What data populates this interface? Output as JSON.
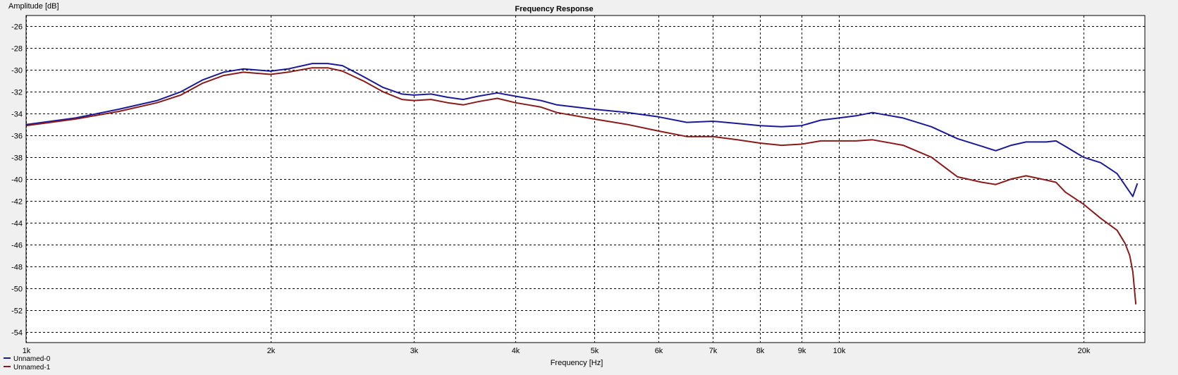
{
  "chart_data": {
    "type": "line",
    "title": "Frequency Response",
    "xlabel": "Frequency [Hz]",
    "ylabel": "Amplitude [dB]",
    "x_scale": "log",
    "xlim": [
      1000,
      23800
    ],
    "ylim": [
      -55,
      -25
    ],
    "grid": true,
    "legend_position": "bottom-left",
    "x_ticks": [
      {
        "value": 1000,
        "label": "1k"
      },
      {
        "value": 2000,
        "label": "2k"
      },
      {
        "value": 3000,
        "label": "3k"
      },
      {
        "value": 4000,
        "label": "4k"
      },
      {
        "value": 5000,
        "label": "5k"
      },
      {
        "value": 6000,
        "label": "6k"
      },
      {
        "value": 7000,
        "label": "7k"
      },
      {
        "value": 8000,
        "label": "8k"
      },
      {
        "value": 9000,
        "label": "9k"
      },
      {
        "value": 10000,
        "label": "10k"
      },
      {
        "value": 20000,
        "label": "20k"
      }
    ],
    "y_ticks": [
      -26,
      -28,
      -30,
      -32,
      -34,
      -36,
      -38,
      -40,
      -42,
      -44,
      -46,
      -48,
      -50,
      -52,
      -54
    ],
    "series": [
      {
        "name": "Unnamed-0",
        "color": "#1a1a99",
        "points": [
          [
            1000,
            -35.0
          ],
          [
            1150,
            -34.4
          ],
          [
            1300,
            -33.6
          ],
          [
            1450,
            -32.8
          ],
          [
            1550,
            -32.0
          ],
          [
            1650,
            -30.9
          ],
          [
            1750,
            -30.2
          ],
          [
            1850,
            -29.9
          ],
          [
            2000,
            -30.1
          ],
          [
            2100,
            -29.9
          ],
          [
            2250,
            -29.4
          ],
          [
            2350,
            -29.4
          ],
          [
            2450,
            -29.6
          ],
          [
            2600,
            -30.6
          ],
          [
            2750,
            -31.6
          ],
          [
            2900,
            -32.2
          ],
          [
            3000,
            -32.3
          ],
          [
            3150,
            -32.2
          ],
          [
            3300,
            -32.5
          ],
          [
            3450,
            -32.7
          ],
          [
            3600,
            -32.4
          ],
          [
            3800,
            -32.1
          ],
          [
            4000,
            -32.4
          ],
          [
            4300,
            -32.8
          ],
          [
            4500,
            -33.2
          ],
          [
            5000,
            -33.6
          ],
          [
            5500,
            -33.9
          ],
          [
            6000,
            -34.3
          ],
          [
            6500,
            -34.8
          ],
          [
            7000,
            -34.7
          ],
          [
            7500,
            -34.9
          ],
          [
            8000,
            -35.1
          ],
          [
            8500,
            -35.2
          ],
          [
            9000,
            -35.1
          ],
          [
            9500,
            -34.6
          ],
          [
            10000,
            -34.4
          ],
          [
            10500,
            -34.2
          ],
          [
            11000,
            -33.9
          ],
          [
            12000,
            -34.4
          ],
          [
            13000,
            -35.2
          ],
          [
            14000,
            -36.3
          ],
          [
            15000,
            -37.0
          ],
          [
            15600,
            -37.4
          ],
          [
            16300,
            -36.9
          ],
          [
            17000,
            -36.6
          ],
          [
            18000,
            -36.6
          ],
          [
            18500,
            -36.5
          ],
          [
            19000,
            -37.0
          ],
          [
            20000,
            -38.0
          ],
          [
            21000,
            -38.5
          ],
          [
            22000,
            -39.5
          ],
          [
            23000,
            -41.6
          ],
          [
            23300,
            -40.4
          ]
        ]
      },
      {
        "name": "Unnamed-1",
        "color": "#8b1a1a",
        "points": [
          [
            1000,
            -35.1
          ],
          [
            1150,
            -34.5
          ],
          [
            1300,
            -33.8
          ],
          [
            1450,
            -33.0
          ],
          [
            1550,
            -32.3
          ],
          [
            1650,
            -31.2
          ],
          [
            1750,
            -30.5
          ],
          [
            1850,
            -30.2
          ],
          [
            2000,
            -30.4
          ],
          [
            2100,
            -30.2
          ],
          [
            2250,
            -29.8
          ],
          [
            2350,
            -29.8
          ],
          [
            2450,
            -30.1
          ],
          [
            2600,
            -31.0
          ],
          [
            2750,
            -32.0
          ],
          [
            2900,
            -32.7
          ],
          [
            3000,
            -32.8
          ],
          [
            3150,
            -32.7
          ],
          [
            3300,
            -33.0
          ],
          [
            3450,
            -33.2
          ],
          [
            3600,
            -32.9
          ],
          [
            3800,
            -32.6
          ],
          [
            4000,
            -33.0
          ],
          [
            4300,
            -33.4
          ],
          [
            4500,
            -33.9
          ],
          [
            5000,
            -34.5
          ],
          [
            5500,
            -35.0
          ],
          [
            6000,
            -35.6
          ],
          [
            6500,
            -36.1
          ],
          [
            7000,
            -36.1
          ],
          [
            7500,
            -36.4
          ],
          [
            8000,
            -36.7
          ],
          [
            8500,
            -36.9
          ],
          [
            9000,
            -36.8
          ],
          [
            9500,
            -36.5
          ],
          [
            10000,
            -36.5
          ],
          [
            10500,
            -36.5
          ],
          [
            11000,
            -36.4
          ],
          [
            12000,
            -36.9
          ],
          [
            13000,
            -38.0
          ],
          [
            14000,
            -39.8
          ],
          [
            15000,
            -40.3
          ],
          [
            15600,
            -40.5
          ],
          [
            16300,
            -40.0
          ],
          [
            17000,
            -39.7
          ],
          [
            18000,
            -40.1
          ],
          [
            18500,
            -40.3
          ],
          [
            19000,
            -41.2
          ],
          [
            20000,
            -42.3
          ],
          [
            21000,
            -43.6
          ],
          [
            22000,
            -44.7
          ],
          [
            22500,
            -45.9
          ],
          [
            22800,
            -47.0
          ],
          [
            23000,
            -48.5
          ],
          [
            23200,
            -51.5
          ]
        ]
      }
    ]
  }
}
